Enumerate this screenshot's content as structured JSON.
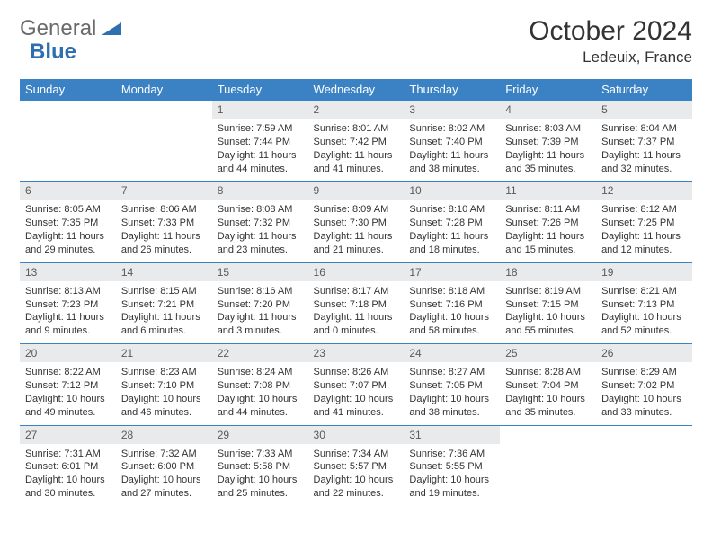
{
  "logo": {
    "text1": "General",
    "text2": "Blue"
  },
  "title": "October 2024",
  "location": "Ledeuix, France",
  "colors": {
    "header_bg": "#3b82c4",
    "header_fg": "#ffffff",
    "daynum_bg": "#e9eaeb",
    "row_border": "#3b82c4",
    "logo_gray": "#6a6a6a",
    "logo_blue": "#2f6fb0"
  },
  "weekdays": [
    "Sunday",
    "Monday",
    "Tuesday",
    "Wednesday",
    "Thursday",
    "Friday",
    "Saturday"
  ],
  "weeks": [
    [
      null,
      null,
      {
        "n": "1",
        "sr": "Sunrise: 7:59 AM",
        "ss": "Sunset: 7:44 PM",
        "dl": "Daylight: 11 hours and 44 minutes."
      },
      {
        "n": "2",
        "sr": "Sunrise: 8:01 AM",
        "ss": "Sunset: 7:42 PM",
        "dl": "Daylight: 11 hours and 41 minutes."
      },
      {
        "n": "3",
        "sr": "Sunrise: 8:02 AM",
        "ss": "Sunset: 7:40 PM",
        "dl": "Daylight: 11 hours and 38 minutes."
      },
      {
        "n": "4",
        "sr": "Sunrise: 8:03 AM",
        "ss": "Sunset: 7:39 PM",
        "dl": "Daylight: 11 hours and 35 minutes."
      },
      {
        "n": "5",
        "sr": "Sunrise: 8:04 AM",
        "ss": "Sunset: 7:37 PM",
        "dl": "Daylight: 11 hours and 32 minutes."
      }
    ],
    [
      {
        "n": "6",
        "sr": "Sunrise: 8:05 AM",
        "ss": "Sunset: 7:35 PM",
        "dl": "Daylight: 11 hours and 29 minutes."
      },
      {
        "n": "7",
        "sr": "Sunrise: 8:06 AM",
        "ss": "Sunset: 7:33 PM",
        "dl": "Daylight: 11 hours and 26 minutes."
      },
      {
        "n": "8",
        "sr": "Sunrise: 8:08 AM",
        "ss": "Sunset: 7:32 PM",
        "dl": "Daylight: 11 hours and 23 minutes."
      },
      {
        "n": "9",
        "sr": "Sunrise: 8:09 AM",
        "ss": "Sunset: 7:30 PM",
        "dl": "Daylight: 11 hours and 21 minutes."
      },
      {
        "n": "10",
        "sr": "Sunrise: 8:10 AM",
        "ss": "Sunset: 7:28 PM",
        "dl": "Daylight: 11 hours and 18 minutes."
      },
      {
        "n": "11",
        "sr": "Sunrise: 8:11 AM",
        "ss": "Sunset: 7:26 PM",
        "dl": "Daylight: 11 hours and 15 minutes."
      },
      {
        "n": "12",
        "sr": "Sunrise: 8:12 AM",
        "ss": "Sunset: 7:25 PM",
        "dl": "Daylight: 11 hours and 12 minutes."
      }
    ],
    [
      {
        "n": "13",
        "sr": "Sunrise: 8:13 AM",
        "ss": "Sunset: 7:23 PM",
        "dl": "Daylight: 11 hours and 9 minutes."
      },
      {
        "n": "14",
        "sr": "Sunrise: 8:15 AM",
        "ss": "Sunset: 7:21 PM",
        "dl": "Daylight: 11 hours and 6 minutes."
      },
      {
        "n": "15",
        "sr": "Sunrise: 8:16 AM",
        "ss": "Sunset: 7:20 PM",
        "dl": "Daylight: 11 hours and 3 minutes."
      },
      {
        "n": "16",
        "sr": "Sunrise: 8:17 AM",
        "ss": "Sunset: 7:18 PM",
        "dl": "Daylight: 11 hours and 0 minutes."
      },
      {
        "n": "17",
        "sr": "Sunrise: 8:18 AM",
        "ss": "Sunset: 7:16 PM",
        "dl": "Daylight: 10 hours and 58 minutes."
      },
      {
        "n": "18",
        "sr": "Sunrise: 8:19 AM",
        "ss": "Sunset: 7:15 PM",
        "dl": "Daylight: 10 hours and 55 minutes."
      },
      {
        "n": "19",
        "sr": "Sunrise: 8:21 AM",
        "ss": "Sunset: 7:13 PM",
        "dl": "Daylight: 10 hours and 52 minutes."
      }
    ],
    [
      {
        "n": "20",
        "sr": "Sunrise: 8:22 AM",
        "ss": "Sunset: 7:12 PM",
        "dl": "Daylight: 10 hours and 49 minutes."
      },
      {
        "n": "21",
        "sr": "Sunrise: 8:23 AM",
        "ss": "Sunset: 7:10 PM",
        "dl": "Daylight: 10 hours and 46 minutes."
      },
      {
        "n": "22",
        "sr": "Sunrise: 8:24 AM",
        "ss": "Sunset: 7:08 PM",
        "dl": "Daylight: 10 hours and 44 minutes."
      },
      {
        "n": "23",
        "sr": "Sunrise: 8:26 AM",
        "ss": "Sunset: 7:07 PM",
        "dl": "Daylight: 10 hours and 41 minutes."
      },
      {
        "n": "24",
        "sr": "Sunrise: 8:27 AM",
        "ss": "Sunset: 7:05 PM",
        "dl": "Daylight: 10 hours and 38 minutes."
      },
      {
        "n": "25",
        "sr": "Sunrise: 8:28 AM",
        "ss": "Sunset: 7:04 PM",
        "dl": "Daylight: 10 hours and 35 minutes."
      },
      {
        "n": "26",
        "sr": "Sunrise: 8:29 AM",
        "ss": "Sunset: 7:02 PM",
        "dl": "Daylight: 10 hours and 33 minutes."
      }
    ],
    [
      {
        "n": "27",
        "sr": "Sunrise: 7:31 AM",
        "ss": "Sunset: 6:01 PM",
        "dl": "Daylight: 10 hours and 30 minutes."
      },
      {
        "n": "28",
        "sr": "Sunrise: 7:32 AM",
        "ss": "Sunset: 6:00 PM",
        "dl": "Daylight: 10 hours and 27 minutes."
      },
      {
        "n": "29",
        "sr": "Sunrise: 7:33 AM",
        "ss": "Sunset: 5:58 PM",
        "dl": "Daylight: 10 hours and 25 minutes."
      },
      {
        "n": "30",
        "sr": "Sunrise: 7:34 AM",
        "ss": "Sunset: 5:57 PM",
        "dl": "Daylight: 10 hours and 22 minutes."
      },
      {
        "n": "31",
        "sr": "Sunrise: 7:36 AM",
        "ss": "Sunset: 5:55 PM",
        "dl": "Daylight: 10 hours and 19 minutes."
      },
      null,
      null
    ]
  ]
}
